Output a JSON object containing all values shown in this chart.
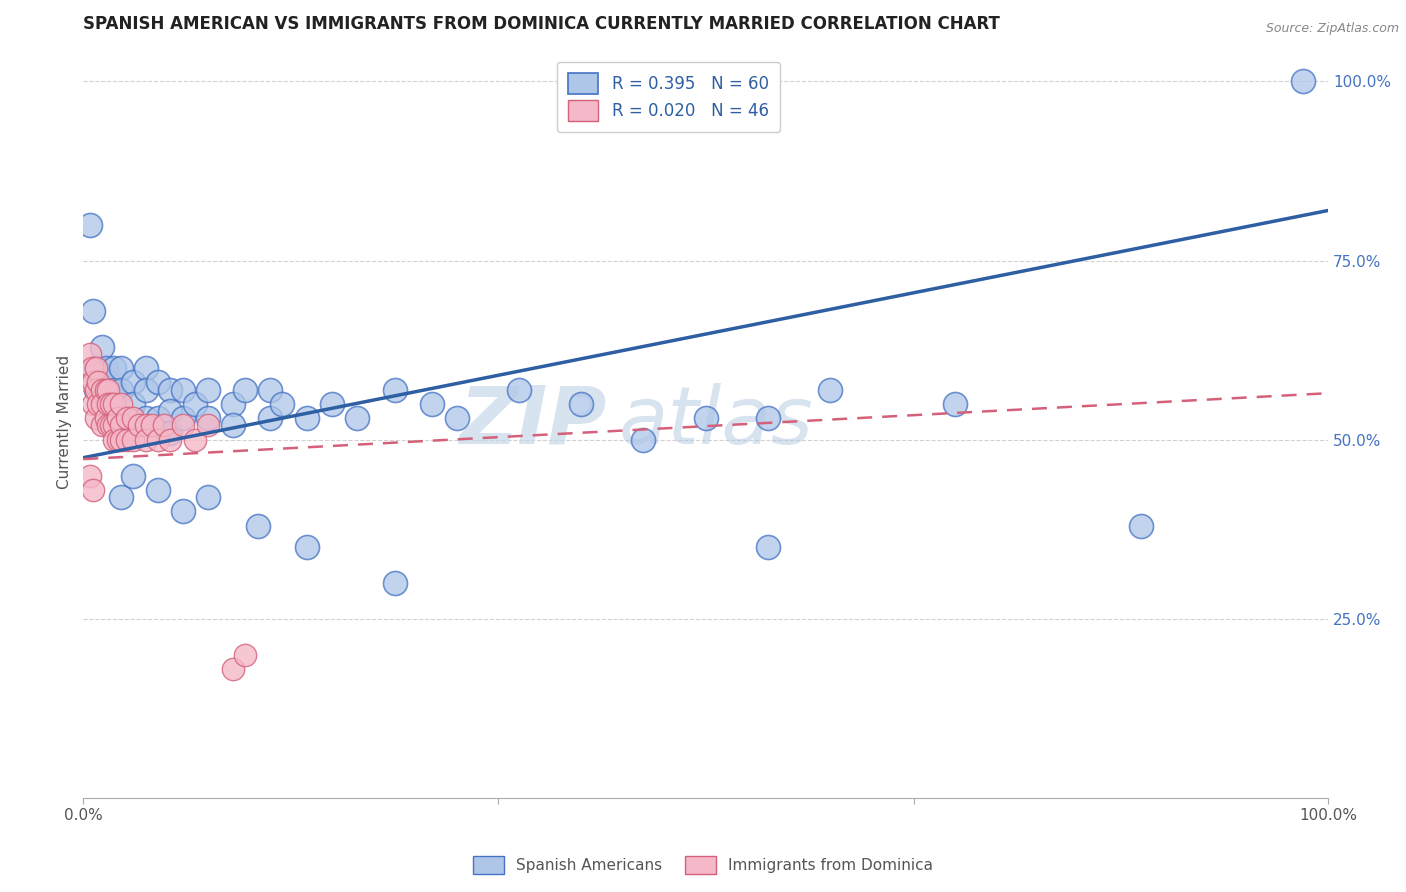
{
  "title": "SPANISH AMERICAN VS IMMIGRANTS FROM DOMINICA CURRENTLY MARRIED CORRELATION CHART",
  "source": "Source: ZipAtlas.com",
  "ylabel": "Currently Married",
  "xlabel": "",
  "watermark_text": "ZIP",
  "watermark_text2": "atlas",
  "xlim": [
    0.0,
    1.0
  ],
  "ylim": [
    0.0,
    1.05
  ],
  "xtick_positions": [
    0.0,
    0.333,
    0.667,
    1.0
  ],
  "xtick_labels": [
    "0.0%",
    "",
    "",
    "100.0%"
  ],
  "ytick_positions": [
    0.25,
    0.5,
    0.75,
    1.0
  ],
  "ytick_labels": [
    "25.0%",
    "50.0%",
    "75.0%",
    "100.0%"
  ],
  "series1_fill": "#aec6e8",
  "series1_edge": "#4472c4",
  "series1_line_color": "#2e5fa3",
  "series1_R": 0.395,
  "series1_N": 60,
  "series2_fill": "#f4b8c8",
  "series2_edge": "#d4607a",
  "series2_line_color": "#d4607a",
  "series2_R": 0.02,
  "series2_N": 46,
  "legend_label1": "Spanish Americans",
  "legend_label2": "Immigrants from Dominica",
  "title_fontsize": 12,
  "axis_label_fontsize": 11,
  "tick_fontsize": 11,
  "legend_fontsize": 12,
  "background_color": "#ffffff",
  "grid_color": "#cccccc",
  "yaxis_label_color": "#4472c4",
  "blue_line_start_y": 0.475,
  "blue_line_end_y": 0.82,
  "pink_line_start_y": 0.473,
  "pink_line_end_y": 0.565,
  "blue_dots_x": [
    0.005,
    0.008,
    0.01,
    0.01,
    0.015,
    0.015,
    0.018,
    0.02,
    0.02,
    0.025,
    0.025,
    0.025,
    0.03,
    0.03,
    0.03,
    0.04,
    0.04,
    0.05,
    0.05,
    0.05,
    0.06,
    0.06,
    0.07,
    0.07,
    0.07,
    0.08,
    0.08,
    0.09,
    0.1,
    0.1,
    0.12,
    0.12,
    0.13,
    0.15,
    0.15,
    0.16,
    0.18,
    0.2,
    0.22,
    0.25,
    0.28,
    0.3,
    0.35,
    0.4,
    0.45,
    0.5,
    0.55,
    0.6,
    0.7,
    0.85,
    0.03,
    0.04,
    0.06,
    0.08,
    0.1,
    0.14,
    0.18,
    0.25,
    0.55,
    0.98
  ],
  "blue_dots_y": [
    0.8,
    0.68,
    0.6,
    0.57,
    0.63,
    0.58,
    0.6,
    0.58,
    0.55,
    0.6,
    0.57,
    0.53,
    0.6,
    0.57,
    0.53,
    0.58,
    0.55,
    0.6,
    0.57,
    0.53,
    0.58,
    0.53,
    0.57,
    0.54,
    0.51,
    0.57,
    0.53,
    0.55,
    0.57,
    0.53,
    0.55,
    0.52,
    0.57,
    0.57,
    0.53,
    0.55,
    0.53,
    0.55,
    0.53,
    0.57,
    0.55,
    0.53,
    0.57,
    0.55,
    0.5,
    0.53,
    0.53,
    0.57,
    0.55,
    0.38,
    0.42,
    0.45,
    0.43,
    0.4,
    0.42,
    0.38,
    0.35,
    0.3,
    0.35,
    1.0
  ],
  "pink_dots_x": [
    0.005,
    0.005,
    0.007,
    0.008,
    0.008,
    0.01,
    0.01,
    0.01,
    0.012,
    0.012,
    0.015,
    0.015,
    0.015,
    0.018,
    0.018,
    0.02,
    0.02,
    0.02,
    0.022,
    0.022,
    0.025,
    0.025,
    0.025,
    0.028,
    0.028,
    0.03,
    0.03,
    0.03,
    0.035,
    0.035,
    0.04,
    0.04,
    0.045,
    0.05,
    0.05,
    0.055,
    0.06,
    0.065,
    0.07,
    0.08,
    0.09,
    0.1,
    0.005,
    0.008,
    0.12,
    0.13
  ],
  "pink_dots_y": [
    0.62,
    0.58,
    0.6,
    0.58,
    0.55,
    0.6,
    0.57,
    0.53,
    0.58,
    0.55,
    0.57,
    0.55,
    0.52,
    0.57,
    0.53,
    0.57,
    0.55,
    0.52,
    0.55,
    0.52,
    0.55,
    0.52,
    0.5,
    0.53,
    0.5,
    0.55,
    0.52,
    0.5,
    0.53,
    0.5,
    0.53,
    0.5,
    0.52,
    0.52,
    0.5,
    0.52,
    0.5,
    0.52,
    0.5,
    0.52,
    0.5,
    0.52,
    0.45,
    0.43,
    0.18,
    0.2
  ]
}
